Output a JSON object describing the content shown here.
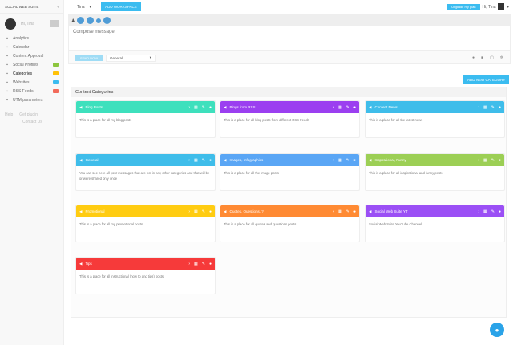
{
  "sidebar": {
    "brand": "SOCIAL WEB SUITE",
    "user": "Hi, Tina",
    "items": [
      {
        "label": "Analytics",
        "icon": "chart-icon"
      },
      {
        "label": "Calendar",
        "icon": "calendar-icon"
      },
      {
        "label": "Content Approval",
        "icon": "list-icon"
      },
      {
        "label": "Social Profiles",
        "icon": "users-icon",
        "badge": "#8dc63f"
      },
      {
        "label": "Categories",
        "icon": "palette-icon",
        "badge": "#ffc107",
        "active": true
      },
      {
        "label": "Websites",
        "icon": "globe-icon",
        "badge": "#3bbcf0"
      },
      {
        "label": "RSS Feeds",
        "icon": "rss-icon",
        "badge": "#f26b5b"
      },
      {
        "label": "UTM parameters",
        "icon": "link-icon"
      }
    ],
    "help": "Help",
    "plugin": "Get plugin",
    "contact": "Contact Us"
  },
  "topbar": {
    "workspace": "Tina",
    "add_workspace": "ADD WORKSPACE",
    "upgrade": "Upgrade my plan",
    "greeting": "Hi, Tina"
  },
  "composer": {
    "placeholder": "Compose message",
    "send": "SEND NOW",
    "category": "General"
  },
  "main": {
    "add_category": "ADD NEW CATEGORY",
    "panel_title": "Content Categories",
    "categories": [
      {
        "name": "Blog Posts",
        "desc": "This is a place for all my blog posts",
        "color": "#3ee0bd"
      },
      {
        "name": "Blogs from RSS",
        "desc": "This is a place for all blog posts from different RSS Feeds",
        "color": "#9b3ff0"
      },
      {
        "name": "Content News",
        "desc": "This is a place for all the latest news",
        "color": "#3fbdea"
      },
      {
        "name": "General",
        "desc": "You can see here all your messages that are not in any other categories and that will be or were shared only once",
        "color": "#3fbdea"
      },
      {
        "name": "Images, Infographics",
        "desc": "This is a place for all the image posts",
        "color": "#5aa6f5"
      },
      {
        "name": "Inspirational, Funny",
        "desc": "This is a place for all inspirational and funny posts",
        "color": "#9ccf55"
      },
      {
        "name": "Promotional",
        "desc": "This is a place for all my promotional posts",
        "color": "#ffcc11"
      },
      {
        "name": "Quotes, Questions, ?",
        "desc": "This is a place for all quotes and questions posts",
        "color": "#ff8a33"
      },
      {
        "name": "Social Web Suite YT",
        "desc": "Social Web Suite YouTube Channel",
        "color": "#9b4ff5"
      },
      {
        "name": "Tips",
        "desc": "This is a place for all instructional (how to and tips) posts",
        "color": "#f63a3a"
      }
    ]
  }
}
